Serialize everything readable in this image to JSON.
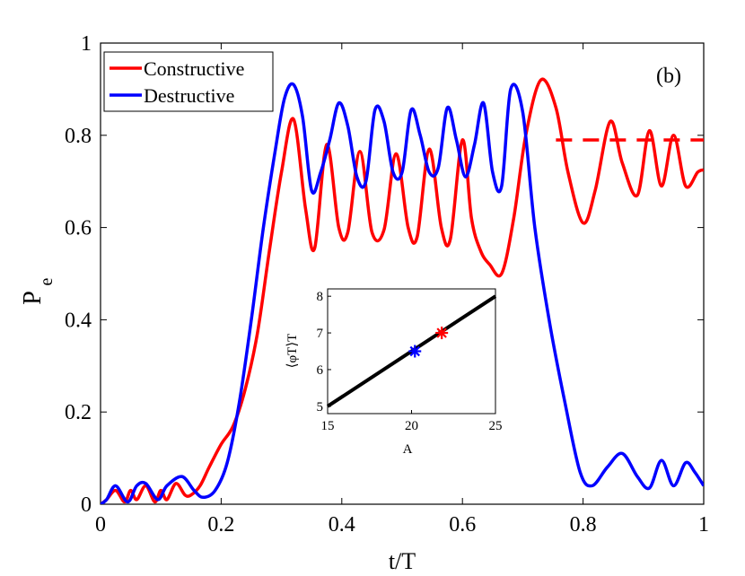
{
  "chart_data": [
    {
      "type": "line",
      "panel_label": "(b)",
      "xlabel": "t/T",
      "ylabel_main": "P",
      "ylabel_sub": "e",
      "xlim": [
        0,
        1
      ],
      "ylim": [
        0,
        1
      ],
      "xticks": [
        0,
        0.2,
        0.4,
        0.6,
        0.8,
        1
      ],
      "xtick_labels": [
        "0",
        "0.2",
        "0.4",
        "0.6",
        "0.8",
        "1"
      ],
      "yticks": [
        0,
        0.2,
        0.4,
        0.6,
        0.8,
        1
      ],
      "ytick_labels": [
        "0",
        "0.2",
        "0.4",
        "0.6",
        "0.8",
        "1"
      ],
      "legend_position": "top-left",
      "series": [
        {
          "name": "Constructive",
          "color": "#ff0000",
          "x": [
            0,
            0.01,
            0.025,
            0.04,
            0.05,
            0.06,
            0.075,
            0.09,
            0.1,
            0.11,
            0.125,
            0.14,
            0.15,
            0.165,
            0.18,
            0.2,
            0.22,
            0.24,
            0.26,
            0.28,
            0.3,
            0.32,
            0.34,
            0.355,
            0.375,
            0.395,
            0.41,
            0.43,
            0.45,
            0.47,
            0.49,
            0.51,
            0.525,
            0.545,
            0.565,
            0.58,
            0.6,
            0.615,
            0.63,
            0.645,
            0.665,
            0.685,
            0.705,
            0.73,
            0.755,
            0.775,
            0.8,
            0.82,
            0.845,
            0.865,
            0.89,
            0.91,
            0.93,
            0.95,
            0.97,
            0.99,
            1
          ],
          "y": [
            0,
            0.01,
            0.03,
            0.005,
            0.03,
            0.01,
            0.04,
            0.005,
            0.03,
            0.01,
            0.045,
            0.02,
            0.02,
            0.04,
            0.08,
            0.13,
            0.17,
            0.25,
            0.37,
            0.55,
            0.72,
            0.835,
            0.64,
            0.555,
            0.78,
            0.6,
            0.59,
            0.765,
            0.59,
            0.595,
            0.76,
            0.6,
            0.58,
            0.77,
            0.6,
            0.575,
            0.79,
            0.62,
            0.55,
            0.52,
            0.5,
            0.62,
            0.8,
            0.92,
            0.86,
            0.72,
            0.61,
            0.68,
            0.83,
            0.74,
            0.67,
            0.81,
            0.69,
            0.8,
            0.69,
            0.72,
            0.725
          ]
        },
        {
          "name": "Destructive",
          "color": "#0000ff",
          "x": [
            0,
            0.01,
            0.025,
            0.045,
            0.06,
            0.075,
            0.095,
            0.11,
            0.135,
            0.155,
            0.17,
            0.19,
            0.21,
            0.23,
            0.25,
            0.27,
            0.29,
            0.305,
            0.32,
            0.335,
            0.35,
            0.365,
            0.38,
            0.395,
            0.41,
            0.425,
            0.44,
            0.455,
            0.47,
            0.485,
            0.5,
            0.515,
            0.53,
            0.545,
            0.56,
            0.575,
            0.59,
            0.605,
            0.62,
            0.635,
            0.65,
            0.665,
            0.68,
            0.7,
            0.72,
            0.745,
            0.77,
            0.795,
            0.815,
            0.84,
            0.865,
            0.89,
            0.91,
            0.93,
            0.95,
            0.97,
            0.985,
            1
          ],
          "y": [
            0,
            0.01,
            0.04,
            0.005,
            0.04,
            0.045,
            0.01,
            0.04,
            0.06,
            0.03,
            0.015,
            0.03,
            0.09,
            0.22,
            0.4,
            0.6,
            0.77,
            0.88,
            0.91,
            0.84,
            0.68,
            0.72,
            0.79,
            0.87,
            0.82,
            0.71,
            0.7,
            0.855,
            0.83,
            0.72,
            0.72,
            0.855,
            0.8,
            0.72,
            0.73,
            0.86,
            0.79,
            0.71,
            0.78,
            0.87,
            0.72,
            0.69,
            0.9,
            0.85,
            0.6,
            0.39,
            0.22,
            0.07,
            0.04,
            0.08,
            0.11,
            0.06,
            0.035,
            0.095,
            0.04,
            0.09,
            0.07,
            0.04
          ]
        }
      ],
      "reference_line": {
        "name": "Constructive average",
        "color": "#ff0000",
        "y": 0.79,
        "x_start": 0.755,
        "x_end": 1
      }
    },
    {
      "type": "line",
      "role": "inset",
      "xlabel": "A",
      "ylabel": "⟨φT⟩T",
      "xlim": [
        15,
        25
      ],
      "ylim": [
        4.8,
        8.2
      ],
      "xticks": [
        15,
        20,
        25
      ],
      "xtick_labels": [
        "15",
        "20",
        "25"
      ],
      "yticks": [
        5,
        6,
        7,
        8
      ],
      "ytick_labels": [
        "5",
        "6",
        "7",
        "8"
      ],
      "line": {
        "color": "#000000",
        "x": [
          15,
          25
        ],
        "y": [
          5,
          8
        ]
      },
      "markers": [
        {
          "name": "Destructive",
          "color": "#0000ff",
          "symbol": "*",
          "x": 20.2,
          "y": 6.5
        },
        {
          "name": "Constructive",
          "color": "#ff0000",
          "symbol": "*",
          "x": 21.8,
          "y": 7.0
        }
      ]
    }
  ]
}
